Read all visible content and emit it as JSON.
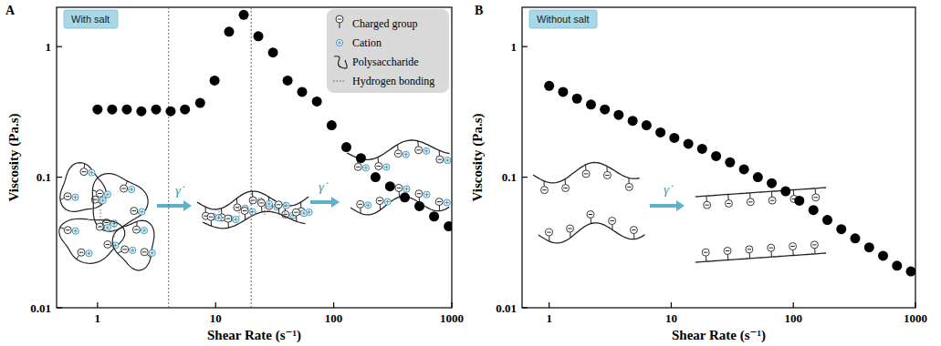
{
  "chart_data": [
    {
      "type": "scatter",
      "panel_label": "A",
      "title": "With salt",
      "x_label": "Shear Rate (s⁻¹)",
      "y_label": "Viscosity (Pa.s)",
      "x": [
        1,
        1.33,
        1.77,
        2.35,
        3.13,
        4.16,
        5.5,
        7.4,
        9.8,
        13,
        17.3,
        23,
        30.6,
        40.7,
        54,
        72,
        96,
        128,
        170,
        226,
        300,
        400,
        532,
        708,
        942
      ],
      "values": [
        0.33,
        0.33,
        0.33,
        0.32,
        0.33,
        0.32,
        0.33,
        0.37,
        0.55,
        1.3,
        1.75,
        1.2,
        0.9,
        0.55,
        0.45,
        0.38,
        0.25,
        0.17,
        0.14,
        0.1,
        0.085,
        0.07,
        0.06,
        0.05,
        0.042
      ],
      "color": "#000000",
      "marker": "circle",
      "log": true,
      "xlim": [
        0.45,
        1000
      ],
      "ylim": [
        0.01,
        2
      ],
      "xticks": [
        1,
        10,
        100,
        1000
      ],
      "yticks": [
        0.01,
        0.1,
        1
      ],
      "reference_lines": [
        4,
        20
      ],
      "annotations": {
        "shear_symbol": "γ̇",
        "legend_items": [
          "Charged group",
          "Cation",
          "Polysaccharide",
          "Hydrogen bonding"
        ]
      }
    },
    {
      "type": "scatter",
      "panel_label": "B",
      "title": "Without salt",
      "x_label": "Shear Rate (s⁻¹)",
      "y_label": "Viscosity (Pa.s)",
      "x": [
        1,
        1.3,
        1.69,
        2.2,
        2.86,
        3.71,
        4.83,
        6.27,
        8.16,
        10.6,
        13.8,
        17.9,
        23.3,
        30.3,
        39.4,
        51.2,
        66.5,
        86.5,
        112,
        146,
        190,
        247,
        321,
        418,
        543,
        706,
        918
      ],
      "values": [
        0.5,
        0.45,
        0.4,
        0.36,
        0.33,
        0.3,
        0.27,
        0.25,
        0.22,
        0.2,
        0.18,
        0.165,
        0.145,
        0.13,
        0.115,
        0.1,
        0.09,
        0.078,
        0.066,
        0.056,
        0.047,
        0.04,
        0.034,
        0.029,
        0.025,
        0.021,
        0.019
      ],
      "color": "#000000",
      "marker": "circle",
      "log": true,
      "xlim": [
        0.6,
        1000
      ],
      "ylim": [
        0.01,
        2
      ],
      "xticks": [
        1,
        10,
        100,
        1000
      ],
      "yticks": [
        0.01,
        0.1,
        1
      ],
      "annotations": {
        "shear_symbol": "γ̇"
      }
    }
  ]
}
